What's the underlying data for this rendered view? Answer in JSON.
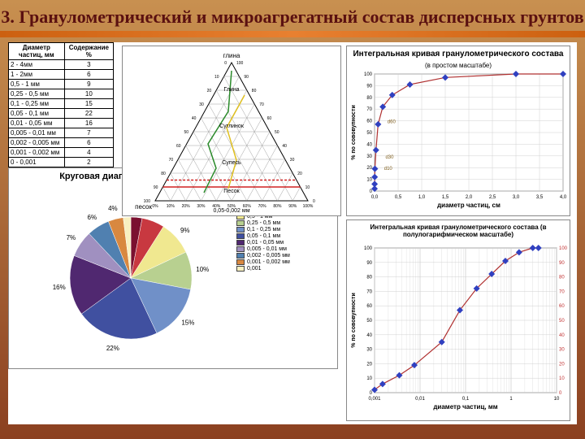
{
  "title": "3. Гранулометрический и микроагрегатный состав дисперсных грунтов",
  "table": {
    "headers": [
      "Диаметр частиц, мм",
      "Содержание %"
    ],
    "rows": [
      [
        "2 - 4мм",
        "3"
      ],
      [
        "1 - 2мм",
        "6"
      ],
      [
        "0,5 - 1 мм",
        "9"
      ],
      [
        "0,25 - 0,5 мм",
        "10"
      ],
      [
        "0,1 - 0,25 мм",
        "15"
      ],
      [
        "0,05 - 0,1 мм",
        "22"
      ],
      [
        "0,01 - 0,05 мм",
        "16"
      ],
      [
        "0,005 - 0,01 мм",
        "7"
      ],
      [
        "0,002 - 0,005 мм",
        "6"
      ],
      [
        "0,001 - 0,002 мм",
        "4"
      ],
      [
        "0 - 0,001",
        "2"
      ]
    ]
  },
  "ternary": {
    "top_label": "глина",
    "left_label": "песок",
    "right_label": "",
    "interior_labels": [
      "Глина",
      "Суглинок",
      "Супесь",
      "Песок"
    ],
    "axis_ticks": [
      0,
      10,
      20,
      30,
      40,
      50,
      60,
      70,
      80,
      90,
      100
    ],
    "bottom_axis_label": "0,05-0,002 мм",
    "grid_color": "#888888",
    "path_color": "#2a8a2a",
    "highlight_color": "#d02020",
    "axis_color": "#000000",
    "yellow_line": "#e0c020"
  },
  "integral_linear": {
    "title": "Интегральная кривая гранулометрического состава",
    "subtitle": "(в простом масштабе)",
    "xlabel": "диаметр частиц, см",
    "ylabel": "% по сововупности",
    "xlim": [
      0,
      4
    ],
    "xtick_step": 0.5,
    "ylim": [
      0,
      100
    ],
    "ytick_step": 10,
    "grid_color": "#d0d0d0",
    "line_color": "#b03030",
    "marker_color": "#3040c0",
    "marker_size": 4,
    "border_color": "#808080",
    "points_x": [
      0.0005,
      0.0015,
      0.0035,
      0.0075,
      0.03,
      0.075,
      0.175,
      0.375,
      0.75,
      1.5,
      3.0,
      4.0
    ],
    "points_y": [
      2,
      6,
      12,
      19,
      35,
      57,
      72,
      82,
      91,
      97,
      100,
      100
    ],
    "d_markers": [
      {
        "label": "d10",
        "x": 0.03,
        "y": 20
      },
      {
        "label": "d30",
        "x": 0.06,
        "y": 30
      },
      {
        "label": "d60",
        "x": 0.1,
        "y": 60
      }
    ]
  },
  "pie": {
    "title": "Круговая диаграмма гранулометрического состава",
    "slices": [
      {
        "label": "2 - 4 мм",
        "value": 3,
        "color": "#7a1030"
      },
      {
        "label": "1 - 2 мм",
        "value": 6,
        "color": "#c83840"
      },
      {
        "label": "0,5 - 1 мм",
        "value": 9,
        "color": "#f0e890"
      },
      {
        "label": "0,25 - 0,5 мм",
        "value": 10,
        "color": "#b8d090"
      },
      {
        "label": "0,1 - 0,25 мм",
        "value": 15,
        "color": "#7090c8"
      },
      {
        "label": "0,05 - 0,1 мм",
        "value": 22,
        "color": "#4050a0"
      },
      {
        "label": "0,01 - 0,05 мм",
        "value": 16,
        "color": "#502870"
      },
      {
        "label": "0,005 - 0,01 мм",
        "value": 7,
        "color": "#a090c0"
      },
      {
        "label": "0,002 - 0,005 мм",
        "value": 6,
        "color": "#5080b0"
      },
      {
        "label": "0,001 - 0,002 мм",
        "value": 4,
        "color": "#d88840"
      },
      {
        "label": "0,001",
        "value": 2,
        "color": "#f8f0c0"
      }
    ],
    "label_color": "#000000",
    "label_fontsize": 8,
    "border_color": "#808080"
  },
  "integral_log": {
    "title": "Интегральная кривая гранулометрического состава (в полулогарифмическом масштабе)",
    "xlabel": "диаметр частиц, мм",
    "ylabel": "% по сововупности",
    "xlog_min": 0.001,
    "xlog_max": 10,
    "xticks": [
      0.001,
      0.01,
      0.1,
      1,
      10
    ],
    "ylim": [
      0,
      100
    ],
    "ytick_step": 10,
    "grid_color": "#d0d0d0",
    "line_color": "#b03030",
    "marker_color": "#3040c0",
    "marker_size": 4,
    "right_ticks_color": "#c03030",
    "points_x": [
      0.001,
      0.0015,
      0.0035,
      0.0075,
      0.03,
      0.075,
      0.175,
      0.375,
      0.75,
      1.5,
      3.0,
      4.0
    ],
    "points_y": [
      2,
      6,
      12,
      19,
      35,
      57,
      72,
      82,
      91,
      97,
      100,
      100
    ]
  }
}
